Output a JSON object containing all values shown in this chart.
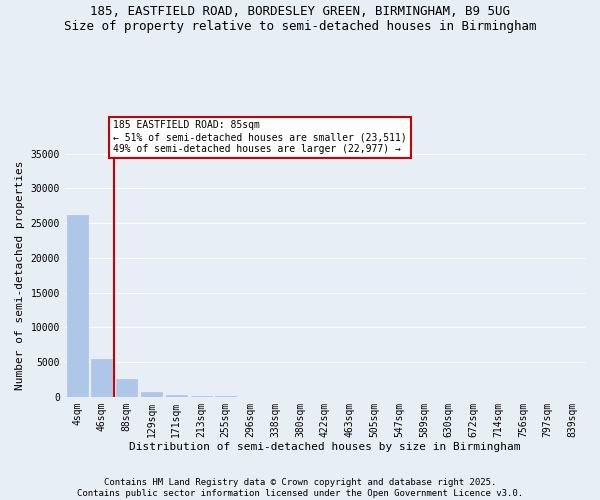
{
  "title_line1": "185, EASTFIELD ROAD, BORDESLEY GREEN, BIRMINGHAM, B9 5UG",
  "title_line2": "Size of property relative to semi-detached houses in Birmingham",
  "xlabel": "Distribution of semi-detached houses by size in Birmingham",
  "ylabel": "Number of semi-detached properties",
  "categories": [
    "4sqm",
    "46sqm",
    "88sqm",
    "129sqm",
    "171sqm",
    "213sqm",
    "255sqm",
    "296sqm",
    "338sqm",
    "380sqm",
    "422sqm",
    "463sqm",
    "505sqm",
    "547sqm",
    "589sqm",
    "630sqm",
    "672sqm",
    "714sqm",
    "756sqm",
    "797sqm",
    "839sqm"
  ],
  "values": [
    26200,
    5500,
    2500,
    700,
    250,
    100,
    60,
    40,
    20,
    15,
    10,
    8,
    5,
    4,
    3,
    2,
    2,
    1,
    1,
    1,
    0
  ],
  "bar_color": "#aec6e8",
  "bar_edge_color": "#aec6e8",
  "annotation_line1": "185 EASTFIELD ROAD: 85sqm",
  "annotation_line2": "← 51% of semi-detached houses are smaller (23,511)",
  "annotation_line3": "49% of semi-detached houses are larger (22,977) →",
  "vline_color": "#cc0000",
  "vline_x": 1.5,
  "annotation_box_color": "#ffffff",
  "annotation_box_edge": "#cc0000",
  "ylim": [
    0,
    35000
  ],
  "yticks": [
    0,
    5000,
    10000,
    15000,
    20000,
    25000,
    30000,
    35000
  ],
  "footer_line1": "Contains HM Land Registry data © Crown copyright and database right 2025.",
  "footer_line2": "Contains public sector information licensed under the Open Government Licence v3.0.",
  "bg_color": "#e8eef5",
  "plot_bg_color": "#e8eef5",
  "grid_color": "#ffffff",
  "title_fontsize": 9,
  "axis_label_fontsize": 8,
  "tick_fontsize": 7,
  "footer_fontsize": 6.5
}
